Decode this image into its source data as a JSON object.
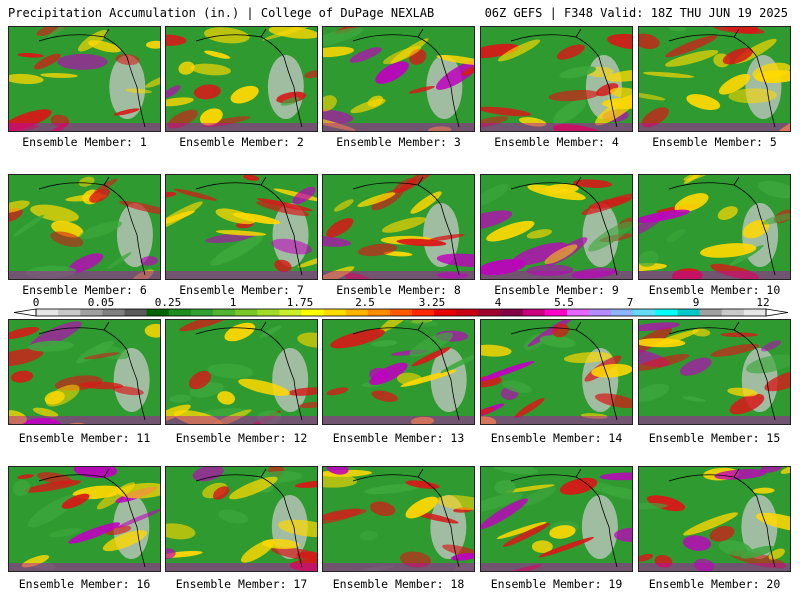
{
  "header": {
    "left_title": "Precipitation Accumulation (in.) | College of DuPage NEXLAB",
    "right_title": "06Z GEFS | F348 Valid: 18Z THU JUN 19 2025"
  },
  "members": [
    {
      "label": "Ensemble Member: 1"
    },
    {
      "label": "Ensemble Member: 2"
    },
    {
      "label": "Ensemble Member: 3"
    },
    {
      "label": "Ensemble Member: 4"
    },
    {
      "label": "Ensemble Member: 5"
    },
    {
      "label": "Ensemble Member: 6"
    },
    {
      "label": "Ensemble Member: 7"
    },
    {
      "label": "Ensemble Member: 8"
    },
    {
      "label": "Ensemble Member: 9"
    },
    {
      "label": "Ensemble Member: 10"
    },
    {
      "label": "Ensemble Member: 11"
    },
    {
      "label": "Ensemble Member: 12"
    },
    {
      "label": "Ensemble Member: 13"
    },
    {
      "label": "Ensemble Member: 14"
    },
    {
      "label": "Ensemble Member: 15"
    },
    {
      "label": "Ensemble Member: 16"
    },
    {
      "label": "Ensemble Member: 17"
    },
    {
      "label": "Ensemble Member: 18"
    },
    {
      "label": "Ensemble Member: 19"
    },
    {
      "label": "Ensemble Member: 20"
    }
  ],
  "colorbar": {
    "tick_labels": [
      "0",
      "0.05",
      "0.25",
      "1",
      "1.75",
      "2.5",
      "3.25",
      "4",
      "5.5",
      "7",
      "9",
      "12"
    ],
    "colors": [
      "#e6e6e6",
      "#c8c8c8",
      "#a0a0a0",
      "#808080",
      "#5a5a5a",
      "#006400",
      "#1e8c1e",
      "#32a032",
      "#50b432",
      "#78c828",
      "#a0dc28",
      "#c8f028",
      "#ffff00",
      "#ffdc00",
      "#ffb400",
      "#ff8c00",
      "#ff5a00",
      "#ff2800",
      "#e60000",
      "#c80014",
      "#a0002d",
      "#820046",
      "#c8007d",
      "#ff00c8",
      "#e664ff",
      "#b48cff",
      "#8cb4ff",
      "#64dcff",
      "#00ffff",
      "#00c8c8",
      "#a0a0a0",
      "#c8c8c8",
      "#e6e6e6"
    ]
  },
  "map_colors": {
    "ocean_base": "#2f9a2f",
    "land_base": "#3da83d",
    "heavy": "#d81818",
    "moderate": "#ffd800",
    "extreme": "#c000c0",
    "dry": "#c8c8c8"
  }
}
